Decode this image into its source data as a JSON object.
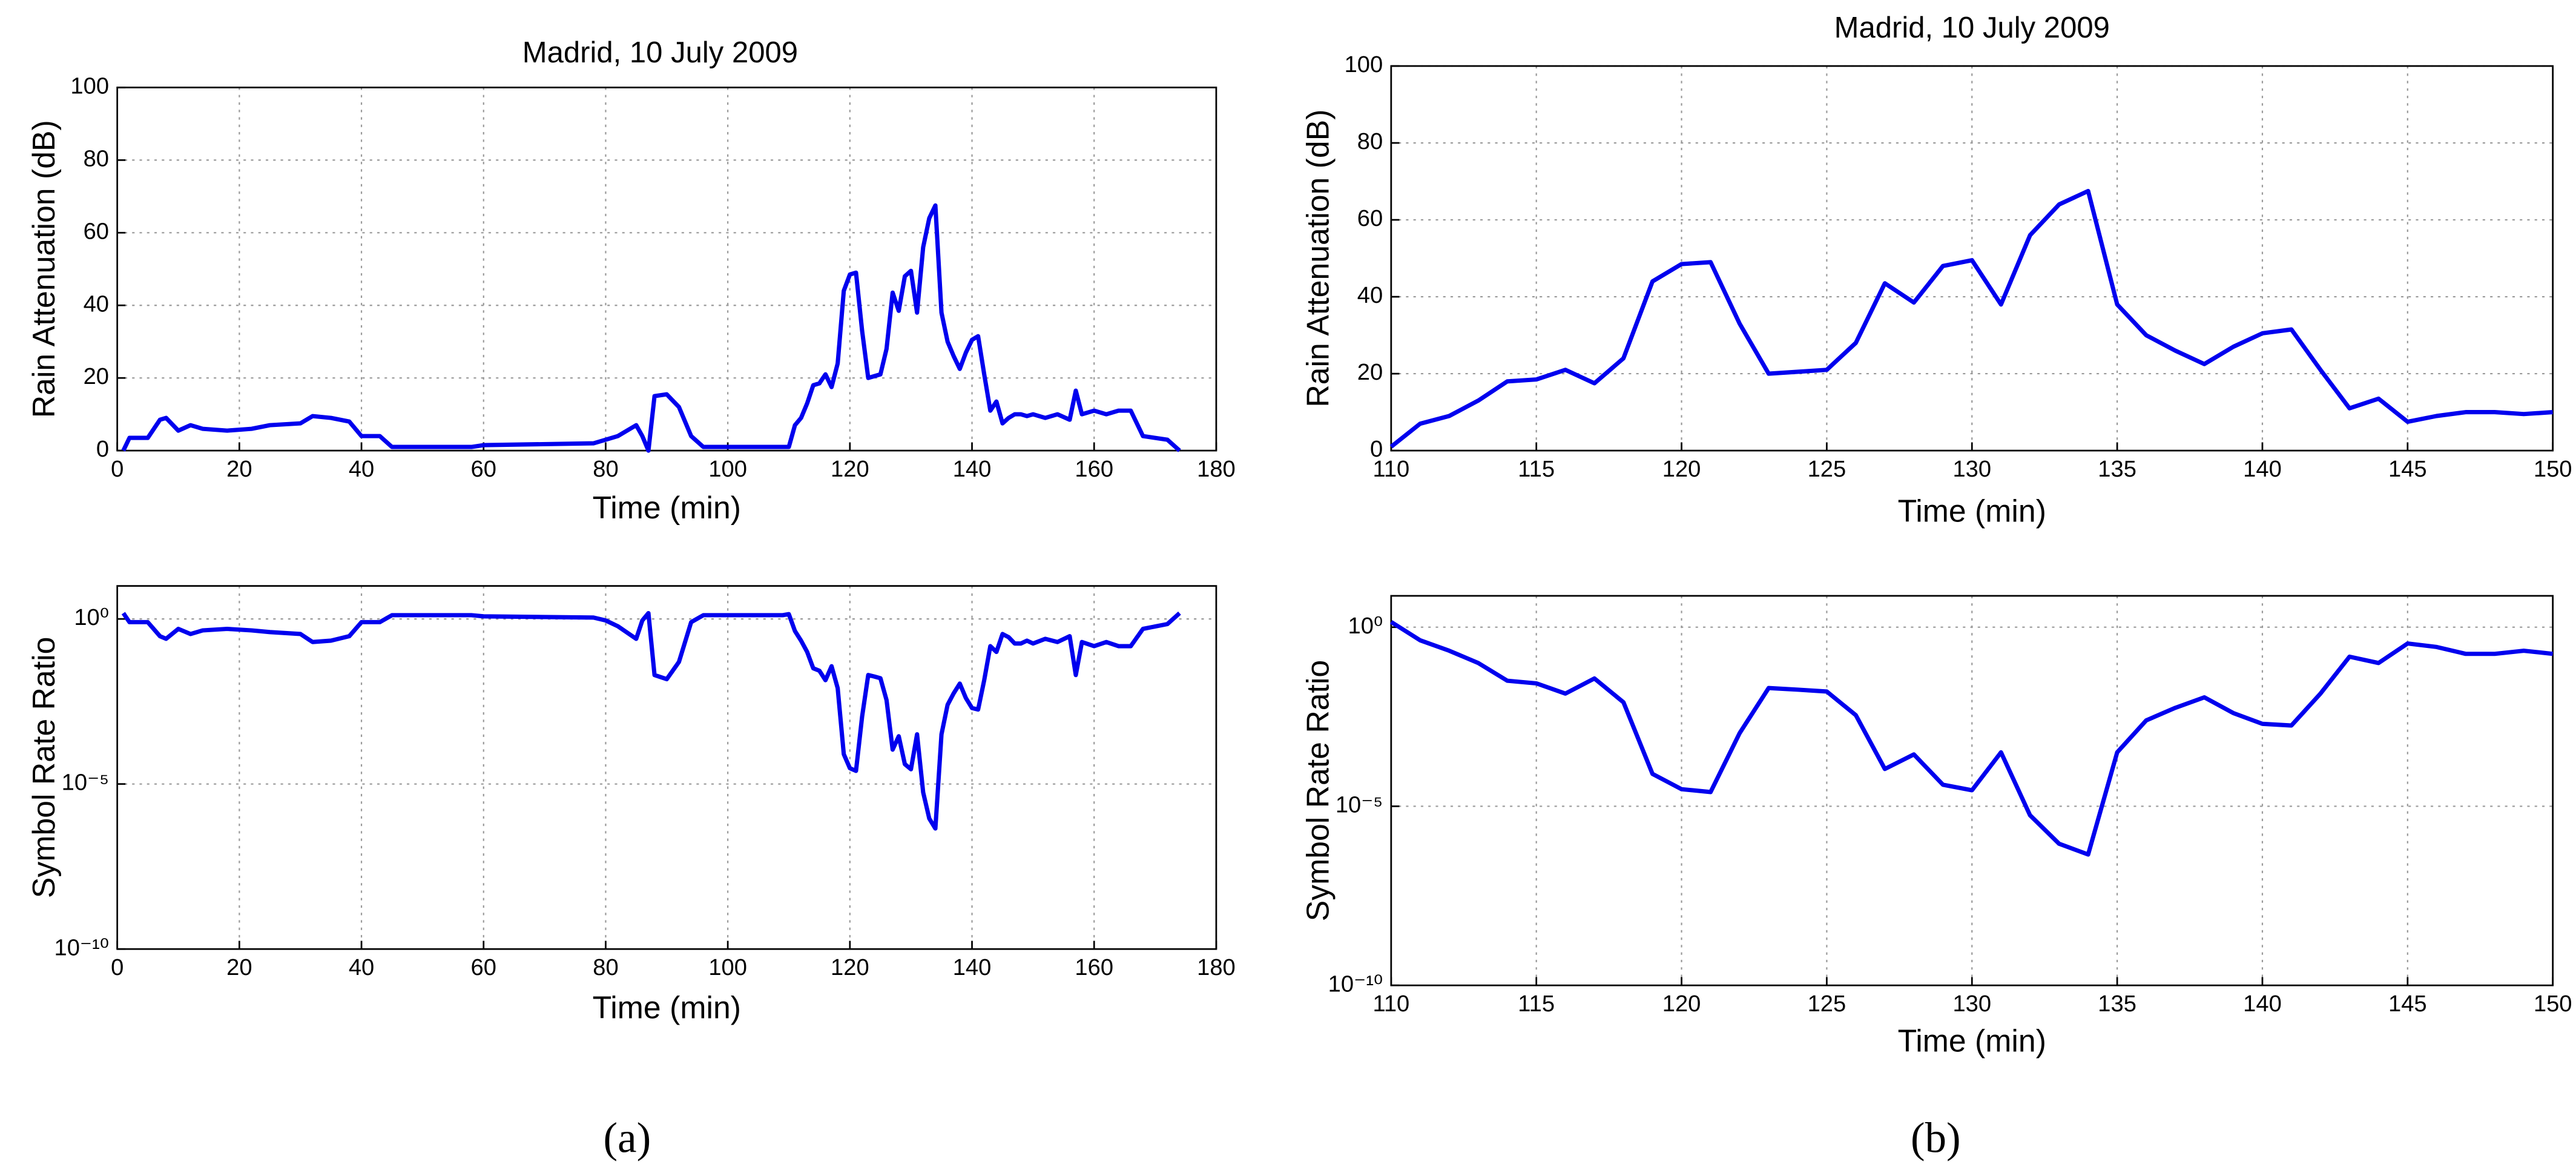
{
  "panels": [
    "(a)",
    "(b)"
  ],
  "chart_data": [
    {
      "type": "line",
      "title": "Madrid, 10 July 2009",
      "xlabel": "Time (min)",
      "ylabel": "Rain Attenuation (dB)",
      "color": "#0000ee",
      "x": [
        1,
        2,
        5,
        7,
        8,
        10,
        12,
        14,
        18,
        22,
        25,
        30,
        32,
        35,
        38,
        40,
        43,
        45,
        58,
        60,
        78,
        80,
        82,
        85,
        86,
        87,
        88,
        90,
        92,
        94,
        96,
        109,
        110,
        111,
        112,
        113,
        114,
        115,
        116,
        117,
        118,
        119,
        120,
        121,
        122,
        123,
        124,
        125,
        126,
        127,
        128,
        129,
        130,
        131,
        132,
        133,
        134,
        135,
        136,
        137,
        138,
        139,
        140,
        141,
        142,
        143,
        144,
        145,
        146,
        147,
        148,
        149,
        150,
        152,
        154,
        156,
        157,
        158,
        160,
        162,
        164,
        166,
        168,
        172,
        174
      ],
      "values": [
        0,
        3.5,
        3.5,
        8.5,
        9,
        5.5,
        7,
        6,
        5.5,
        6,
        7,
        7.5,
        9.5,
        9,
        8,
        4,
        4,
        1,
        1,
        1.5,
        2,
        3,
        4,
        7,
        4,
        0,
        15,
        15.5,
        12,
        4,
        1,
        1,
        1,
        7,
        9,
        13,
        18,
        18.5,
        21,
        17.5,
        24,
        44,
        48.5,
        49,
        33,
        20,
        20.5,
        21,
        28,
        43.5,
        38.5,
        48,
        49.5,
        38,
        56,
        64,
        67.5,
        38,
        30,
        26,
        22.5,
        27,
        30.5,
        31.5,
        21,
        11,
        13.5,
        7.5,
        9,
        10,
        10,
        9.5,
        10,
        9,
        10,
        8.5,
        16.5,
        10,
        11,
        10,
        11,
        11,
        4,
        3,
        0
      ],
      "xlim": [
        0,
        180
      ],
      "xticks": [
        0,
        20,
        40,
        60,
        80,
        100,
        120,
        140,
        160,
        180
      ],
      "ylim": [
        0,
        100
      ],
      "yticks": [
        0,
        20,
        40,
        60,
        80,
        100
      ],
      "grid": true
    },
    {
      "type": "line",
      "xlabel": "Time (min)",
      "ylabel": "Symbol Rate Ratio",
      "color": "#0000ee",
      "yscale": "log",
      "x": [
        1,
        2,
        5,
        7,
        8,
        10,
        12,
        14,
        18,
        22,
        25,
        30,
        32,
        35,
        38,
        40,
        43,
        45,
        58,
        60,
        78,
        80,
        82,
        85,
        86,
        87,
        88,
        90,
        92,
        94,
        96,
        109,
        110,
        111,
        112,
        113,
        114,
        115,
        116,
        117,
        118,
        119,
        120,
        121,
        122,
        123,
        124,
        125,
        126,
        127,
        128,
        129,
        130,
        131,
        132,
        133,
        134,
        135,
        136,
        137,
        138,
        139,
        140,
        141,
        142,
        143,
        144,
        145,
        146,
        147,
        148,
        149,
        150,
        152,
        154,
        156,
        157,
        158,
        160,
        162,
        164,
        166,
        168,
        172,
        174
      ],
      "values": [
        1.5,
        0.8,
        0.8,
        0.3,
        0.25,
        0.5,
        0.35,
        0.45,
        0.5,
        0.45,
        0.4,
        0.35,
        0.2,
        0.22,
        0.3,
        0.8,
        0.8,
        1.3,
        1.3,
        1.2,
        1.1,
        0.9,
        0.6,
        0.25,
        0.9,
        1.5,
        0.02,
        0.015,
        0.05,
        0.8,
        1.3,
        1.3,
        1.4,
        0.43,
        0.22,
        0.1,
        0.032,
        0.027,
        0.014,
        0.037,
        0.008,
        8e-05,
        3e-05,
        2.5e-05,
        0.0011,
        0.02,
        0.018,
        0.016,
        0.0035,
        0.00011,
        0.00028,
        4e-05,
        2.8e-05,
        0.00032,
        5.6e-06,
        9e-07,
        4.5e-07,
        0.00032,
        0.0025,
        0.0056,
        0.011,
        0.004,
        0.002,
        0.0018,
        0.014,
        0.15,
        0.1,
        0.35,
        0.28,
        0.18,
        0.18,
        0.22,
        0.18,
        0.25,
        0.2,
        0.3,
        0.02,
        0.2,
        0.15,
        0.2,
        0.15,
        0.15,
        0.5,
        0.7,
        1.5
      ],
      "xlim": [
        0,
        180
      ],
      "xticks": [
        0,
        20,
        40,
        60,
        80,
        100,
        120,
        140,
        160,
        180
      ],
      "ylim": [
        1e-10,
        10
      ],
      "yticks": [
        {
          "value": 1e-10,
          "label": "10⁻¹⁰"
        },
        {
          "value": 1e-05,
          "label": "10⁻⁵"
        },
        {
          "value": 1,
          "label": "10⁰"
        }
      ],
      "grid": true
    },
    {
      "type": "line",
      "title": "Madrid, 10 July 2009",
      "xlabel": "Time (min)",
      "ylabel": "Rain Attenuation (dB)",
      "color": "#0000ee",
      "x": [
        110,
        111,
        112,
        113,
        114,
        115,
        116,
        117,
        118,
        119,
        120,
        121,
        122,
        123,
        124,
        125,
        126,
        127,
        128,
        129,
        130,
        131,
        132,
        133,
        134,
        135,
        136,
        137,
        138,
        139,
        140,
        141,
        142,
        143,
        144,
        145,
        146,
        147,
        148,
        149,
        150
      ],
      "values": [
        1,
        7,
        9,
        13,
        18,
        18.5,
        21,
        17.5,
        24,
        44,
        48.5,
        49,
        33,
        20,
        20.5,
        21,
        28,
        43.5,
        38.5,
        48,
        49.5,
        38,
        56,
        64,
        67.5,
        38,
        30,
        26,
        22.5,
        27,
        30.5,
        31.5,
        21,
        11,
        13.5,
        7.5,
        9,
        10,
        10,
        9.5,
        10
      ],
      "xlim": [
        110,
        150
      ],
      "xticks": [
        110,
        115,
        120,
        125,
        130,
        135,
        140,
        145,
        150
      ],
      "ylim": [
        0,
        100
      ],
      "yticks": [
        0,
        20,
        40,
        60,
        80,
        100
      ],
      "grid": true
    },
    {
      "type": "line",
      "xlabel": "Time (min)",
      "ylabel": "Symbol Rate Ratio",
      "color": "#0000ee",
      "yscale": "log",
      "x": [
        110,
        111,
        112,
        113,
        114,
        115,
        116,
        117,
        118,
        119,
        120,
        121,
        122,
        123,
        124,
        125,
        126,
        127,
        128,
        129,
        130,
        131,
        132,
        133,
        134,
        135,
        136,
        137,
        138,
        139,
        140,
        141,
        142,
        143,
        144,
        145,
        146,
        147,
        148,
        149,
        150
      ],
      "values": [
        1.4,
        0.43,
        0.22,
        0.1,
        0.032,
        0.027,
        0.014,
        0.037,
        0.008,
        8e-05,
        3e-05,
        2.5e-05,
        0.0011,
        0.02,
        0.018,
        0.016,
        0.0035,
        0.00011,
        0.00028,
        4e-05,
        2.8e-05,
        0.00032,
        5.6e-06,
        9e-07,
        4.5e-07,
        0.00032,
        0.0025,
        0.0056,
        0.011,
        0.004,
        0.002,
        0.0018,
        0.014,
        0.15,
        0.1,
        0.35,
        0.28,
        0.18,
        0.18,
        0.22,
        0.18
      ],
      "xlim": [
        110,
        150
      ],
      "xticks": [
        110,
        115,
        120,
        125,
        130,
        135,
        140,
        145,
        150
      ],
      "ylim": [
        1e-10,
        7.5
      ],
      "yticks": [
        {
          "value": 1e-10,
          "label": "10⁻¹⁰"
        },
        {
          "value": 1e-05,
          "label": "10⁻⁵"
        },
        {
          "value": 1,
          "label": "10⁰"
        }
      ],
      "grid": true
    }
  ]
}
